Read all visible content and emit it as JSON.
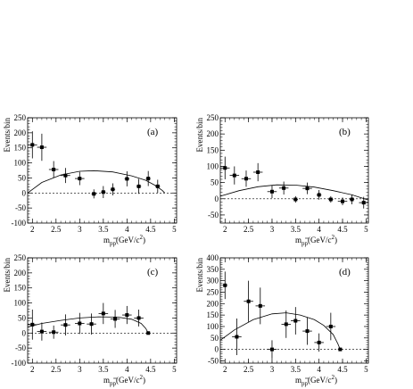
{
  "figure": {
    "ylabel": "Events/bin",
    "xlabel_main": "m",
    "xlabel_sub": "pp",
    "xlabel_unit": "(GeV/c",
    "xlabel_exp": "2",
    "xlabel_close": ")"
  },
  "chart_data": [
    {
      "type": "scatter",
      "label": "(a)",
      "xlim": [
        1.9,
        5.05
      ],
      "ylim": [
        -100,
        250
      ],
      "xticks": [
        "2",
        "2.5",
        "3",
        "3.5",
        "4",
        "4.5",
        "5"
      ],
      "yticks": [
        "-100",
        "-50",
        "0",
        "50",
        "100",
        "150",
        "200",
        "250"
      ],
      "points": [
        {
          "x": 2.0,
          "y": 160,
          "xerr": 0.1,
          "yerr": 45
        },
        {
          "x": 2.2,
          "y": 152,
          "xerr": 0.1,
          "yerr": 45
        },
        {
          "x": 2.45,
          "y": 78,
          "xerr": 0.1,
          "yerr": 28
        },
        {
          "x": 2.7,
          "y": 58,
          "xerr": 0.1,
          "yerr": 25
        },
        {
          "x": 3.0,
          "y": 48,
          "xerr": 0.1,
          "yerr": 22
        },
        {
          "x": 3.3,
          "y": -3,
          "xerr": 0.05,
          "yerr": 15
        },
        {
          "x": 3.5,
          "y": 3,
          "xerr": 0.05,
          "yerr": 20
        },
        {
          "x": 3.7,
          "y": 12,
          "xerr": 0.05,
          "yerr": 20
        },
        {
          "x": 4.0,
          "y": 47,
          "xerr": 0.05,
          "yerr": 25
        },
        {
          "x": 4.25,
          "y": 22,
          "xerr": 0.05,
          "yerr": 25
        },
        {
          "x": 4.45,
          "y": 48,
          "xerr": 0.05,
          "yerr": 25
        },
        {
          "x": 4.65,
          "y": 22,
          "xerr": 0.05,
          "yerr": 22
        }
      ],
      "curve": {
        "x": [
          1.9,
          2.2,
          2.6,
          3.0,
          3.3,
          3.7,
          4.1,
          4.4,
          4.6,
          4.75,
          4.8
        ],
        "y": [
          0,
          35,
          60,
          72,
          74,
          70,
          57,
          42,
          25,
          8,
          0
        ]
      }
    },
    {
      "type": "scatter",
      "label": "(b)",
      "xlim": [
        1.9,
        5.05
      ],
      "ylim": [
        -75,
        250
      ],
      "xticks": [
        "2",
        "2.5",
        "3",
        "3.5",
        "4",
        "4.5",
        "5"
      ],
      "yticks": [
        "-50",
        "0",
        "50",
        "100",
        "150",
        "200",
        "250"
      ],
      "points": [
        {
          "x": 2.0,
          "y": 95,
          "xerr": 0.1,
          "yerr": 35
        },
        {
          "x": 2.2,
          "y": 72,
          "xerr": 0.1,
          "yerr": 28
        },
        {
          "x": 2.45,
          "y": 62,
          "xerr": 0.1,
          "yerr": 25
        },
        {
          "x": 2.7,
          "y": 82,
          "xerr": 0.1,
          "yerr": 28
        },
        {
          "x": 3.0,
          "y": 22,
          "xerr": 0.1,
          "yerr": 20
        },
        {
          "x": 3.25,
          "y": 33,
          "xerr": 0.1,
          "yerr": 20
        },
        {
          "x": 3.5,
          "y": -2,
          "xerr": 0.05,
          "yerr": 10
        },
        {
          "x": 3.75,
          "y": 32,
          "xerr": 0.1,
          "yerr": 18
        },
        {
          "x": 4.0,
          "y": 12,
          "xerr": 0.05,
          "yerr": 15
        },
        {
          "x": 4.25,
          "y": -2,
          "xerr": 0.05,
          "yerr": 10
        },
        {
          "x": 4.5,
          "y": -8,
          "xerr": 0.1,
          "yerr": 12
        },
        {
          "x": 4.7,
          "y": -2,
          "xerr": 0.05,
          "yerr": 15
        },
        {
          "x": 4.95,
          "y": -12,
          "xerr": 0.1,
          "yerr": 18
        }
      ],
      "curve": {
        "x": [
          1.9,
          2.3,
          2.7,
          3.1,
          3.5,
          3.9,
          4.3,
          4.7,
          5.05
        ],
        "y": [
          8,
          25,
          37,
          43,
          42,
          36,
          25,
          12,
          -4
        ]
      }
    },
    {
      "type": "scatter",
      "label": "(c)",
      "xlim": [
        1.9,
        5.05
      ],
      "ylim": [
        -100,
        250
      ],
      "xticks": [
        "2",
        "2.5",
        "3",
        "3.5",
        "4",
        "4.5",
        "5"
      ],
      "yticks": [
        "-100",
        "-50",
        "0",
        "50",
        "100",
        "150",
        "200",
        "250"
      ],
      "points": [
        {
          "x": 2.0,
          "y": 28,
          "xerr": 0.1,
          "yerr": 50
        },
        {
          "x": 2.2,
          "y": 5,
          "xerr": 0.1,
          "yerr": 30
        },
        {
          "x": 2.45,
          "y": 3,
          "xerr": 0.1,
          "yerr": 22
        },
        {
          "x": 2.7,
          "y": 27,
          "xerr": 0.1,
          "yerr": 35
        },
        {
          "x": 3.0,
          "y": 32,
          "xerr": 0.1,
          "yerr": 35
        },
        {
          "x": 3.25,
          "y": 30,
          "xerr": 0.1,
          "yerr": 35
        },
        {
          "x": 3.5,
          "y": 65,
          "xerr": 0.1,
          "yerr": 35
        },
        {
          "x": 3.75,
          "y": 47,
          "xerr": 0.1,
          "yerr": 30
        },
        {
          "x": 4.0,
          "y": 60,
          "xerr": 0.1,
          "yerr": 30
        },
        {
          "x": 4.25,
          "y": 50,
          "xerr": 0.1,
          "yerr": 28
        },
        {
          "x": 4.45,
          "y": 0,
          "xerr": 0.05,
          "yerr": 3
        }
      ],
      "curve": {
        "x": [
          1.9,
          2.2,
          2.6,
          3.0,
          3.4,
          3.8,
          4.1,
          4.3,
          4.4,
          4.45
        ],
        "y": [
          20,
          32,
          42,
          50,
          54,
          53,
          46,
          32,
          15,
          0
        ]
      }
    },
    {
      "type": "scatter",
      "label": "(d)",
      "xlim": [
        1.9,
        5.05
      ],
      "ylim": [
        -60,
        400
      ],
      "xticks": [
        "2",
        "2.5",
        "3",
        "3.5",
        "4",
        "4.5",
        "5"
      ],
      "yticks": [
        "-50",
        "0",
        "50",
        "100",
        "150",
        "200",
        "250",
        "300",
        "350",
        "400"
      ],
      "points": [
        {
          "x": 2.0,
          "y": 280,
          "xerr": 0.05,
          "yerr": 60
        },
        {
          "x": 2.25,
          "y": 55,
          "xerr": 0.1,
          "yerr": 80
        },
        {
          "x": 2.5,
          "y": 210,
          "xerr": 0.1,
          "yerr": 90
        },
        {
          "x": 2.75,
          "y": 190,
          "xerr": 0.1,
          "yerr": 80
        },
        {
          "x": 3.0,
          "y": 0,
          "xerr": 0.1,
          "yerr": 40
        },
        {
          "x": 3.3,
          "y": 110,
          "xerr": 0.1,
          "yerr": 60
        },
        {
          "x": 3.5,
          "y": 125,
          "xerr": 0.1,
          "yerr": 60
        },
        {
          "x": 3.75,
          "y": 80,
          "xerr": 0.1,
          "yerr": 60
        },
        {
          "x": 4.0,
          "y": 30,
          "xerr": 0.1,
          "yerr": 40
        },
        {
          "x": 4.25,
          "y": 100,
          "xerr": 0.1,
          "yerr": 60
        },
        {
          "x": 4.45,
          "y": 0,
          "xerr": 0.05,
          "yerr": 5
        }
      ],
      "curve": {
        "x": [
          1.9,
          2.2,
          2.6,
          3.0,
          3.3,
          3.6,
          3.9,
          4.1,
          4.3,
          4.4,
          4.45
        ],
        "y": [
          40,
          85,
          130,
          155,
          160,
          150,
          130,
          105,
          65,
          25,
          0
        ]
      }
    }
  ]
}
